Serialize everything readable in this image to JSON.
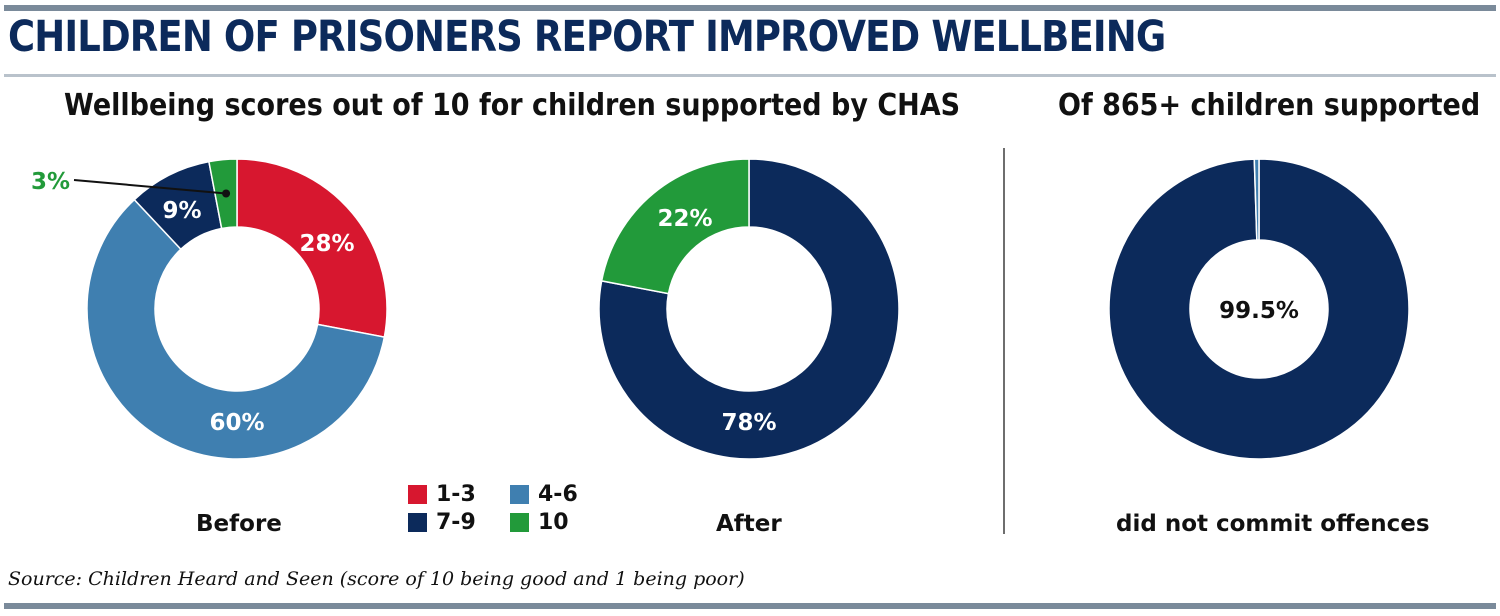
{
  "headline": "CHILDREN OF PRISONERS REPORT IMPROVED WELLBEING",
  "subtitle_left": "Wellbeing scores out of 10 for children supported by CHAS",
  "subtitle_right": "Of 865+ children supported",
  "source": "Source: Children Heard and Seen (score of 10 being good and 1 being poor)",
  "legend": [
    {
      "label": "1-3",
      "color": "#d7172f"
    },
    {
      "label": "4-6",
      "color": "#3f7fb0"
    },
    {
      "label": "7-9",
      "color": "#0c2a5b"
    },
    {
      "label": "10",
      "color": "#229a3a"
    }
  ],
  "chart_data": [
    {
      "type": "pie",
      "caption": "Before",
      "slices": [
        {
          "category": "1-3",
          "value": 28,
          "label": "28%",
          "color": "#d7172f"
        },
        {
          "category": "4-6",
          "value": 60,
          "label": "60%",
          "color": "#3f7fb0"
        },
        {
          "category": "7-9",
          "value": 9,
          "label": "9%",
          "color": "#0c2a5b"
        },
        {
          "category": "10",
          "value": 3,
          "label": "3%",
          "color": "#229a3a"
        }
      ]
    },
    {
      "type": "pie",
      "caption": "After",
      "slices": [
        {
          "category": "7-9",
          "value": 78,
          "label": "78%",
          "color": "#0c2a5b"
        },
        {
          "category": "10",
          "value": 22,
          "label": "22%",
          "color": "#229a3a"
        }
      ]
    },
    {
      "type": "pie",
      "caption": "did not commit offences",
      "center_label": "99.5%",
      "slices": [
        {
          "category": "did not commit offences",
          "value": 99.5,
          "label": "99.5%",
          "color": "#0c2a5b"
        },
        {
          "category": "other",
          "value": 0.5,
          "label": "",
          "color": "#3f7fb0"
        }
      ]
    }
  ]
}
